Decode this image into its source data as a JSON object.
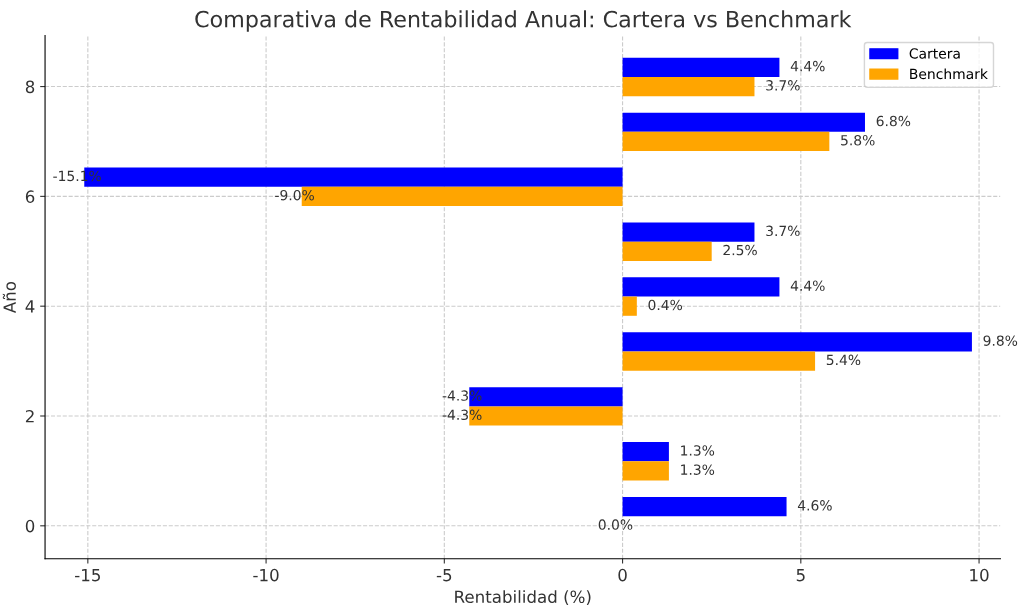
{
  "chart_data": {
    "type": "bar",
    "orientation": "horizontal",
    "title": "Comparativa de Rentabilidad Anual: Cartera vs Benchmark",
    "xlabel": "Rentabilidad (%)",
    "ylabel": "Año",
    "x": [
      0,
      1,
      2,
      3,
      4,
      5,
      6,
      7,
      8
    ],
    "series": [
      {
        "name": "Cartera",
        "color": "#0000ff",
        "values": [
          4.6,
          1.3,
          -4.3,
          9.8,
          4.4,
          3.7,
          -15.1,
          6.8,
          4.4
        ],
        "value_labels": [
          "4.6%",
          "1.3%",
          "-4.3%",
          "9.8%",
          "4.4%",
          "3.7%",
          "-15.1%",
          "6.8%",
          "4.4%"
        ]
      },
      {
        "name": "Benchmark",
        "color": "#ffa500",
        "values": [
          0.0,
          1.3,
          -4.3,
          5.4,
          0.4,
          2.5,
          -9.0,
          5.8,
          3.7
        ],
        "value_labels": [
          "0.0%",
          "1.3%",
          "-4.3%",
          "5.4%",
          "0.4%",
          "2.5%",
          "-9.0%",
          "5.8%",
          "3.7%"
        ]
      }
    ],
    "xlim": [
      -16.2,
      10.6
    ],
    "xticks": [
      -15,
      -10,
      -5,
      0,
      5,
      10
    ],
    "ylim": [
      -0.6,
      8.93
    ],
    "yticks": [
      0,
      2,
      4,
      6,
      8
    ],
    "grid": true,
    "legend": "top right"
  }
}
